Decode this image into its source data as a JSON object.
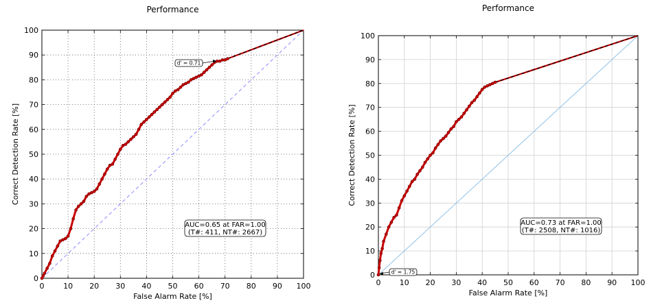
{
  "chart_data": [
    {
      "type": "line",
      "title": "Performance",
      "xlabel": "False Alarm Rate [%]",
      "ylabel": "Correct Detection Rate [%]",
      "xlim": [
        0,
        100
      ],
      "ylim": [
        0,
        100
      ],
      "xticks": [
        0,
        10,
        20,
        30,
        40,
        50,
        60,
        70,
        80,
        90,
        100
      ],
      "yticks": [
        0,
        10,
        20,
        30,
        40,
        50,
        60,
        70,
        80,
        90,
        100
      ],
      "grid": "dotted",
      "annotation": {
        "text": "AUC=0.65 at FAR=1.00",
        "subtext": "(T#: 411, NT#: 2667)",
        "position": "lower-right"
      },
      "dprime": {
        "label": "d' = 0.71",
        "point": [
          67,
          87.5
        ]
      },
      "series": [
        {
          "name": "ROC",
          "color": "#cc0000",
          "x": [
            0,
            0.5,
            1,
            2,
            3,
            4,
            5,
            6,
            7,
            8,
            9,
            10,
            11,
            12,
            13,
            14,
            15,
            16,
            17,
            18,
            19,
            20,
            21,
            22,
            23,
            24,
            25,
            26,
            27,
            28,
            29,
            30,
            31,
            32,
            33,
            34,
            35,
            36,
            37,
            38,
            39,
            40,
            41,
            42,
            43,
            44,
            45,
            46,
            47,
            48,
            49,
            50,
            51,
            52,
            53,
            54,
            55,
            56,
            57,
            58,
            59,
            60,
            61,
            62,
            63,
            64,
            65,
            66,
            67,
            68,
            69,
            70,
            71
          ],
          "y": [
            0,
            1,
            2,
            4,
            6,
            9,
            11,
            13,
            15,
            15.5,
            16,
            17,
            20,
            24,
            27.5,
            29,
            30,
            31,
            33,
            34,
            34.5,
            35,
            36,
            38,
            40,
            42,
            44,
            45.5,
            46,
            48,
            50,
            52,
            53.5,
            54,
            55,
            56,
            57,
            58,
            60,
            62,
            63,
            64,
            65,
            66,
            67,
            68,
            69,
            70,
            71,
            72,
            73,
            74.5,
            75.5,
            76,
            77,
            78,
            78.5,
            79,
            80,
            80.5,
            81,
            81.5,
            82,
            83,
            84,
            85,
            86,
            87,
            87.5,
            87.5,
            88,
            88,
            88.5
          ]
        },
        {
          "name": "Tail",
          "color": "#000000",
          "dash": true,
          "x": [
            71,
            100
          ],
          "y": [
            88.5,
            100
          ]
        },
        {
          "name": "Chance",
          "color": "#8888ff",
          "dash": true,
          "x": [
            0,
            100
          ],
          "y": [
            0,
            100
          ]
        }
      ]
    },
    {
      "type": "line",
      "title": "Performance",
      "xlabel": "False Alarm Rate [%]",
      "ylabel": "Correct Detection Rate [%]",
      "xlim": [
        0,
        100
      ],
      "ylim": [
        0,
        100
      ],
      "xticks": [
        0,
        10,
        20,
        30,
        40,
        50,
        60,
        70,
        80,
        90,
        100
      ],
      "yticks": [
        0,
        10,
        20,
        30,
        40,
        50,
        60,
        70,
        80,
        90,
        100
      ],
      "grid": "solid",
      "annotation": {
        "text": "AUC=0.73 at FAR=1.00",
        "subtext": "(T#: 2508, NT#: 1016)",
        "position": "lower-right"
      },
      "dprime": {
        "label": "d' = 1.75",
        "point": [
          0.5,
          0.5
        ]
      },
      "series": [
        {
          "name": "ROC",
          "color": "#cc0000",
          "x": [
            0,
            0.3,
            0.6,
            1,
            1.5,
            2,
            3,
            4,
            5,
            6,
            7,
            8,
            9,
            10,
            11,
            12,
            13,
            14,
            15,
            16,
            17,
            18,
            19,
            20,
            21,
            22,
            23,
            24,
            25,
            26,
            27,
            28,
            29,
            30,
            31,
            32,
            33,
            34,
            35,
            36,
            37,
            38,
            39,
            40,
            41,
            42,
            43,
            44,
            45
          ],
          "y": [
            0,
            3,
            6,
            9,
            11,
            14,
            17,
            20,
            22,
            24,
            25,
            28,
            31,
            33,
            35,
            37,
            39,
            40,
            42,
            43.5,
            45,
            47,
            48.5,
            50,
            51,
            53,
            54.5,
            56,
            57,
            58,
            59.5,
            61,
            62,
            64,
            65,
            66,
            67.5,
            69,
            70.5,
            72,
            73,
            74.5,
            76,
            77.5,
            78.5,
            79,
            79.5,
            80,
            80.5
          ]
        },
        {
          "name": "Tail",
          "color": "#000000",
          "dash": true,
          "x": [
            45,
            100
          ],
          "y": [
            80.5,
            100
          ]
        },
        {
          "name": "Chance",
          "color": "#8fc1e8",
          "dash": false,
          "x": [
            0,
            100
          ],
          "y": [
            0,
            100
          ]
        }
      ]
    }
  ]
}
